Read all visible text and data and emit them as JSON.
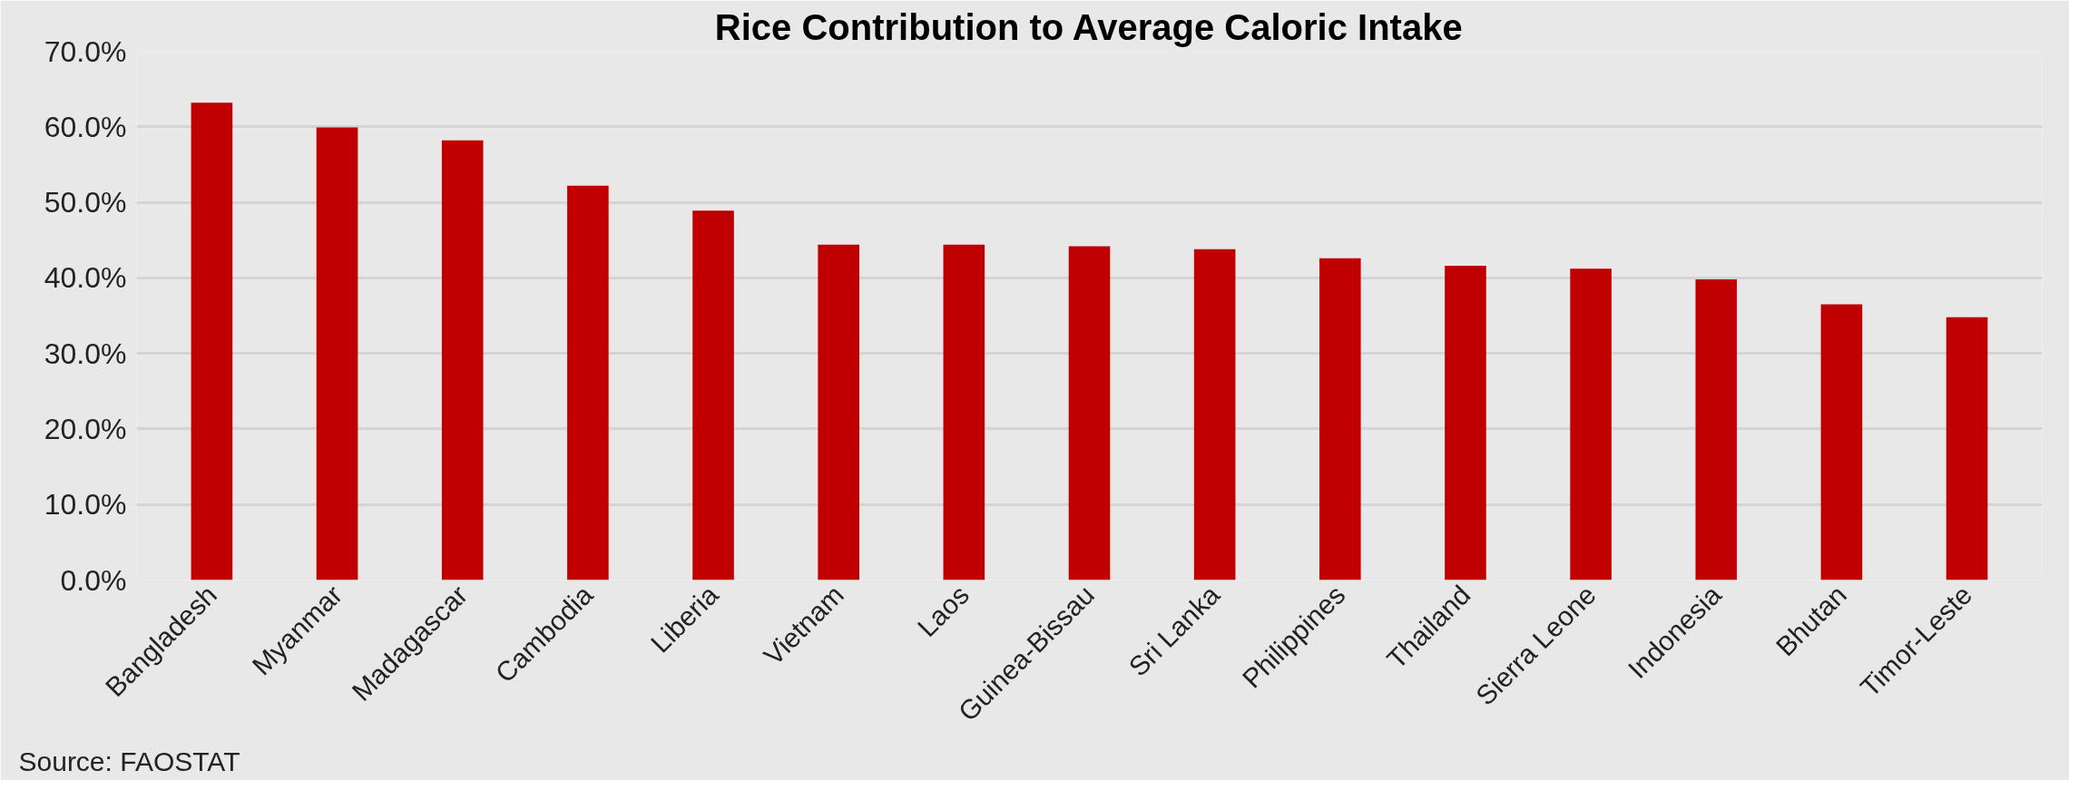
{
  "chart_data": {
    "type": "bar",
    "title": "Rice Contribution to Average Caloric Intake",
    "categories": [
      "Bangladesh",
      "Myanmar",
      "Madagascar",
      "Cambodia",
      "Liberia",
      "Vietnam",
      "Laos",
      "Guinea-Bissau",
      "Sri Lanka",
      "Philippines",
      "Thailand",
      "Sierra Leone",
      "Indonesia",
      "Bhutan",
      "Timor-Leste"
    ],
    "values": [
      63.2,
      59.9,
      58.2,
      52.2,
      48.9,
      44.4,
      44.4,
      44.2,
      43.8,
      42.6,
      41.6,
      41.2,
      39.8,
      36.5,
      34.8
    ],
    "color": "#c00000",
    "ylim": [
      0,
      70
    ],
    "yticks": [
      {
        "value": 0,
        "label": "0.0%"
      },
      {
        "value": 10,
        "label": "10.0%"
      },
      {
        "value": 20,
        "label": "20.0%"
      },
      {
        "value": 30,
        "label": "30.0%"
      },
      {
        "value": 40,
        "label": "40.0%"
      },
      {
        "value": 50,
        "label": "50.0%"
      },
      {
        "value": 60,
        "label": "60.0%"
      },
      {
        "value": 70,
        "label": "70.0%"
      }
    ],
    "grid": "y",
    "annotations": [
      "Source: FAOSTAT"
    ]
  }
}
